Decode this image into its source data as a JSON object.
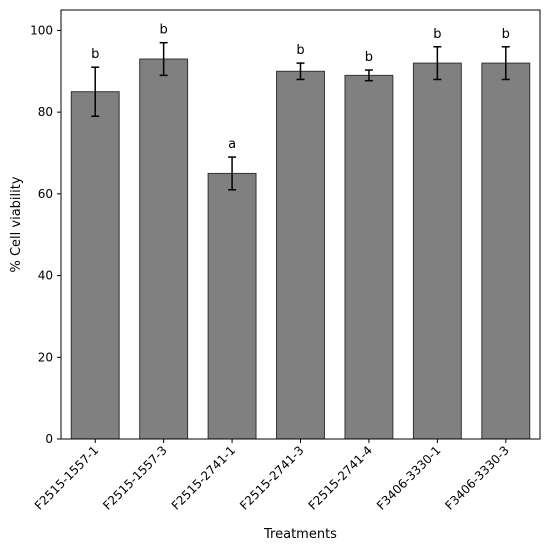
{
  "chart_data": {
    "type": "bar",
    "title": "",
    "xlabel": "Treatments",
    "ylabel": "% Cell viability",
    "ylim": [
      0,
      105
    ],
    "yticks": [
      0,
      20,
      40,
      60,
      80,
      100
    ],
    "grid": false,
    "legend": "none",
    "bar_color": "#808080",
    "bar_edge_color": "#333333",
    "categories": [
      "F2515-1557-1",
      "F2515-1557-3",
      "F2515-2741-1",
      "F2515-2741-3",
      "F2515-2741-4",
      "F3406-3330-1",
      "F3406-3330-3"
    ],
    "values": [
      85,
      93,
      65,
      90,
      89,
      92,
      92
    ],
    "errors": [
      6,
      4,
      4,
      2,
      1.3,
      4,
      4
    ],
    "annotations": [
      "b",
      "b",
      "a",
      "b",
      "b",
      "b",
      "b"
    ]
  }
}
